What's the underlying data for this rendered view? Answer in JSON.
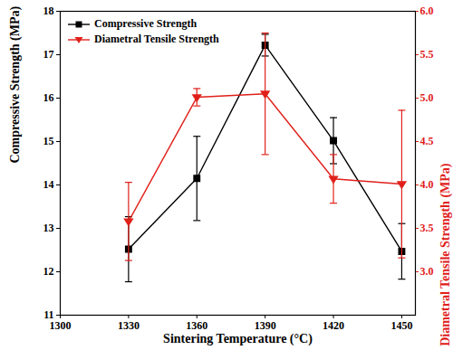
{
  "chart_data": {
    "type": "line",
    "xlabel": "Sintering Temperature (°C)",
    "ylabel": "Compressive Strength (MPa)",
    "y2label": "Diametral Tensile Strength (MPa)",
    "x": [
      1330,
      1360,
      1390,
      1420,
      1450
    ],
    "xlim": [
      1300,
      1456
    ],
    "xticks": [
      1300,
      1330,
      1360,
      1390,
      1420,
      1450
    ],
    "ylim": [
      11,
      18
    ],
    "yticks": [
      11,
      12,
      13,
      14,
      15,
      16,
      17,
      18
    ],
    "y2lim": [
      2.5,
      6.0
    ],
    "y2ticks": [
      {
        "value": 3,
        "label": "3.0"
      },
      {
        "value": 3.5,
        "label": "3.5"
      },
      {
        "value": 4,
        "label": "4.0"
      },
      {
        "value": 4.5,
        "label": "4.5"
      },
      {
        "value": 5,
        "label": "5.0"
      },
      {
        "value": 5.5,
        "label": "5.5"
      },
      {
        "value": 6,
        "label": "6.0"
      }
    ],
    "legend": "upper left",
    "series": [
      {
        "name": "Compressive Strength",
        "color": "#000000",
        "marker": "square",
        "values": [
          12.52,
          14.15,
          17.22,
          15.02,
          12.47
        ],
        "errors": [
          0.75,
          0.97,
          0.25,
          0.53,
          0.64
        ]
      },
      {
        "name": "Diametral Tensile Strength",
        "color": "#e0201a",
        "marker": "triangle-down",
        "axis": "y2",
        "values": [
          3.58,
          5.01,
          5.05,
          4.07,
          4.01
        ],
        "errors": [
          0.45,
          0.1,
          0.7,
          0.28,
          0.85
        ]
      }
    ]
  }
}
